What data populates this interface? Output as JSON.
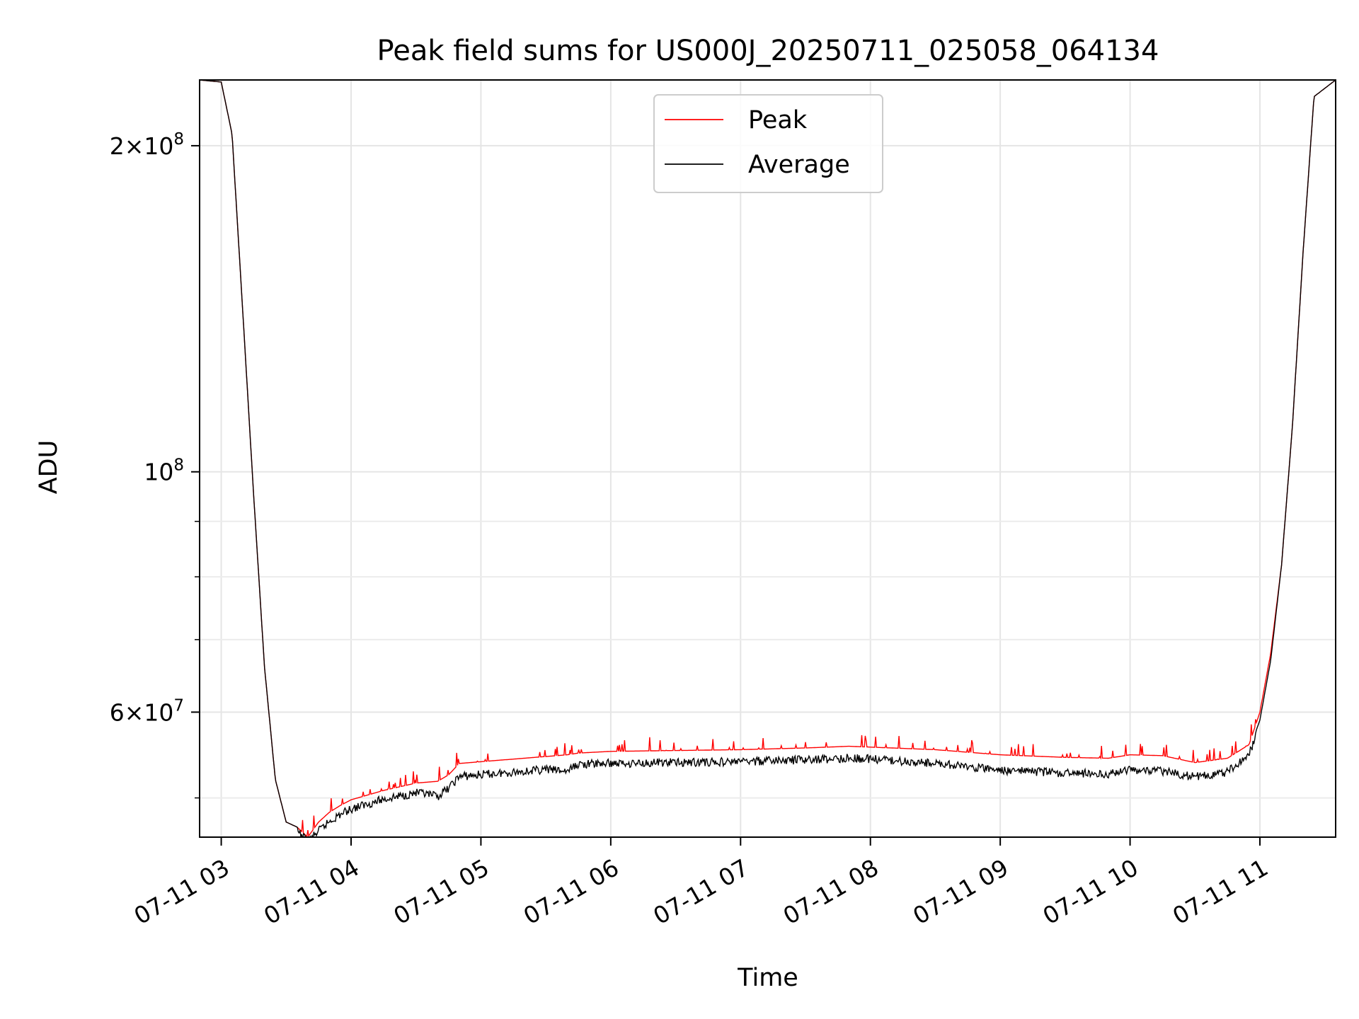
{
  "chart_data": {
    "type": "line",
    "title": "Peak field sums for US000J_20250711_025058_064134",
    "xlabel": "Time",
    "ylabel": "ADU",
    "yscale": "log",
    "grid": true,
    "legend_position": "top-center",
    "xlim": [
      "2025-07-11 02:50",
      "2025-07-11 11:35"
    ],
    "ylim": [
      46000000,
      230000000
    ],
    "x_ticks": [
      "07-11 03",
      "07-11 04",
      "07-11 05",
      "07-11 06",
      "07-11 07",
      "07-11 08",
      "07-11 09",
      "07-11 10",
      "07-11 11"
    ],
    "y_ticks": [
      {
        "base": "2",
        "exp": "8",
        "value": 200000000
      },
      {
        "base": "",
        "exp": "8",
        "value": 100000000
      },
      {
        "base": "6",
        "exp": "7",
        "value": 60000000
      }
    ],
    "y_minor_ticks": [
      50000000,
      70000000,
      80000000,
      90000000
    ],
    "series": [
      {
        "name": "Peak",
        "color": "#ff0000",
        "x": [
          "2025-07-11 02:50",
          "2025-07-11 03:00",
          "2025-07-11 03:05",
          "2025-07-11 03:10",
          "2025-07-11 03:15",
          "2025-07-11 03:20",
          "2025-07-11 03:25",
          "2025-07-11 03:30",
          "2025-07-11 03:35",
          "2025-07-11 03:40",
          "2025-07-11 03:45",
          "2025-07-11 03:50",
          "2025-07-11 03:55",
          "2025-07-11 04:00",
          "2025-07-11 04:15",
          "2025-07-11 04:30",
          "2025-07-11 04:40",
          "2025-07-11 04:45",
          "2025-07-11 04:50",
          "2025-07-11 05:00",
          "2025-07-11 05:15",
          "2025-07-11 05:30",
          "2025-07-11 05:40",
          "2025-07-11 05:45",
          "2025-07-11 06:00",
          "2025-07-11 06:30",
          "2025-07-11 07:00",
          "2025-07-11 07:30",
          "2025-07-11 07:50",
          "2025-07-11 08:00",
          "2025-07-11 08:30",
          "2025-07-11 09:00",
          "2025-07-11 09:30",
          "2025-07-11 09:50",
          "2025-07-11 10:00",
          "2025-07-11 10:15",
          "2025-07-11 10:30",
          "2025-07-11 10:45",
          "2025-07-11 10:55",
          "2025-07-11 11:00",
          "2025-07-11 11:05",
          "2025-07-11 11:10",
          "2025-07-11 11:15",
          "2025-07-11 11:20",
          "2025-07-11 11:25",
          "2025-07-11 11:35"
        ],
        "values": [
          230000000,
          229000000,
          205000000,
          140000000,
          95000000,
          66000000,
          52000000,
          47500000,
          47000000,
          46000000,
          47500000,
          48500000,
          49200000,
          49800000,
          50800000,
          51600000,
          51800000,
          52500000,
          53800000,
          54000000,
          54300000,
          54600000,
          54800000,
          55000000,
          55200000,
          55300000,
          55400000,
          55600000,
          55800000,
          55700000,
          55400000,
          54800000,
          54500000,
          54400000,
          54800000,
          54700000,
          53900000,
          54400000,
          56000000,
          60000000,
          68000000,
          82000000,
          110000000,
          160000000,
          222000000,
          230000000
        ]
      },
      {
        "name": "Average",
        "color": "#000000",
        "x": [
          "2025-07-11 02:50",
          "2025-07-11 03:00",
          "2025-07-11 03:05",
          "2025-07-11 03:10",
          "2025-07-11 03:15",
          "2025-07-11 03:20",
          "2025-07-11 03:25",
          "2025-07-11 03:30",
          "2025-07-11 03:35",
          "2025-07-11 03:40",
          "2025-07-11 03:45",
          "2025-07-11 03:50",
          "2025-07-11 03:55",
          "2025-07-11 04:00",
          "2025-07-11 04:15",
          "2025-07-11 04:30",
          "2025-07-11 04:40",
          "2025-07-11 04:45",
          "2025-07-11 04:50",
          "2025-07-11 05:00",
          "2025-07-11 05:15",
          "2025-07-11 05:30",
          "2025-07-11 05:40",
          "2025-07-11 05:45",
          "2025-07-11 06:00",
          "2025-07-11 06:30",
          "2025-07-11 07:00",
          "2025-07-11 07:30",
          "2025-07-11 07:50",
          "2025-07-11 08:00",
          "2025-07-11 08:30",
          "2025-07-11 09:00",
          "2025-07-11 09:30",
          "2025-07-11 09:50",
          "2025-07-11 10:00",
          "2025-07-11 10:15",
          "2025-07-11 10:30",
          "2025-07-11 10:45",
          "2025-07-11 10:55",
          "2025-07-11 11:00",
          "2025-07-11 11:05",
          "2025-07-11 11:10",
          "2025-07-11 11:15",
          "2025-07-11 11:20",
          "2025-07-11 11:25",
          "2025-07-11 11:35"
        ],
        "values": [
          230000000,
          229000000,
          205000000,
          140000000,
          95000000,
          66000000,
          52000000,
          47500000,
          47000000,
          46000000,
          47000000,
          48000000,
          48700000,
          49300000,
          50300000,
          51000000,
          50600000,
          51500000,
          52800000,
          53000000,
          53300000,
          53600000,
          53400000,
          54200000,
          54300000,
          54400000,
          54500000,
          54700000,
          54900000,
          54800000,
          54300000,
          53500000,
          53200000,
          53100000,
          53600000,
          53400000,
          52800000,
          53300000,
          55300000,
          59000000,
          67000000,
          82000000,
          110000000,
          160000000,
          222000000,
          230000000
        ]
      }
    ]
  }
}
